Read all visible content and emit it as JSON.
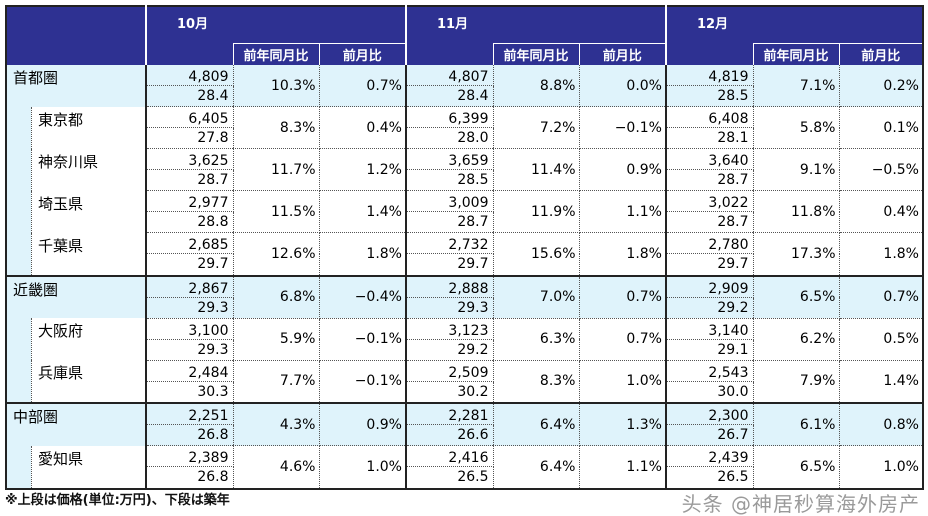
{
  "header": {
    "months": [
      "10月",
      "11月",
      "12月"
    ],
    "yoy_label": "前年同月比",
    "mom_label": "前月比"
  },
  "rows": [
    {
      "name": "首都圏",
      "group": true,
      "cells": [
        [
          "4,809",
          "28.4",
          "10.3%",
          "0.7%"
        ],
        [
          "4,807",
          "28.4",
          "8.8%",
          "0.0%"
        ],
        [
          "4,819",
          "28.5",
          "7.1%",
          "0.2%"
        ]
      ]
    },
    {
      "name": "東京都",
      "group": false,
      "cells": [
        [
          "6,405",
          "27.8",
          "8.3%",
          "0.4%"
        ],
        [
          "6,399",
          "28.0",
          "7.2%",
          "−0.1%"
        ],
        [
          "6,408",
          "28.1",
          "5.8%",
          "0.1%"
        ]
      ]
    },
    {
      "name": "神奈川県",
      "group": false,
      "cells": [
        [
          "3,625",
          "28.7",
          "11.7%",
          "1.2%"
        ],
        [
          "3,659",
          "28.5",
          "11.4%",
          "0.9%"
        ],
        [
          "3,640",
          "28.7",
          "9.1%",
          "−0.5%"
        ]
      ]
    },
    {
      "name": "埼玉県",
      "group": false,
      "cells": [
        [
          "2,977",
          "28.8",
          "11.5%",
          "1.4%"
        ],
        [
          "3,009",
          "28.7",
          "11.9%",
          "1.1%"
        ],
        [
          "3,022",
          "28.7",
          "11.8%",
          "0.4%"
        ]
      ]
    },
    {
      "name": "千葉県",
      "group": false,
      "cells": [
        [
          "2,685",
          "29.7",
          "12.6%",
          "1.8%"
        ],
        [
          "2,732",
          "29.7",
          "15.6%",
          "1.8%"
        ],
        [
          "2,780",
          "29.7",
          "17.3%",
          "1.8%"
        ]
      ]
    },
    {
      "name": "近畿圏",
      "group": true,
      "cells": [
        [
          "2,867",
          "29.3",
          "6.8%",
          "−0.4%"
        ],
        [
          "2,888",
          "29.3",
          "7.0%",
          "0.7%"
        ],
        [
          "2,909",
          "29.2",
          "6.5%",
          "0.7%"
        ]
      ]
    },
    {
      "name": "大阪府",
      "group": false,
      "cells": [
        [
          "3,100",
          "29.3",
          "5.9%",
          "−0.1%"
        ],
        [
          "3,123",
          "29.2",
          "6.3%",
          "0.7%"
        ],
        [
          "3,140",
          "29.1",
          "6.2%",
          "0.5%"
        ]
      ]
    },
    {
      "name": "兵庫県",
      "group": false,
      "cells": [
        [
          "2,484",
          "30.3",
          "7.7%",
          "−0.1%"
        ],
        [
          "2,509",
          "30.2",
          "8.3%",
          "1.0%"
        ],
        [
          "2,543",
          "30.0",
          "7.9%",
          "1.4%"
        ]
      ]
    },
    {
      "name": "中部圏",
      "group": true,
      "cells": [
        [
          "2,251",
          "26.8",
          "4.3%",
          "0.9%"
        ],
        [
          "2,281",
          "26.6",
          "6.4%",
          "1.3%"
        ],
        [
          "2,300",
          "26.7",
          "6.1%",
          "0.8%"
        ]
      ]
    },
    {
      "name": "愛知県",
      "group": false,
      "cells": [
        [
          "2,389",
          "26.8",
          "4.6%",
          "1.0%"
        ],
        [
          "2,416",
          "26.5",
          "6.4%",
          "1.1%"
        ],
        [
          "2,439",
          "26.5",
          "6.5%",
          "1.0%"
        ]
      ]
    }
  ],
  "footnote": "※上段は価格(単位:万円)、下段は築年",
  "watermark": "头条 @神居秒算海外房产",
  "colors": {
    "header_bg": "#2e3192",
    "group_bg": "#dff3fb"
  }
}
